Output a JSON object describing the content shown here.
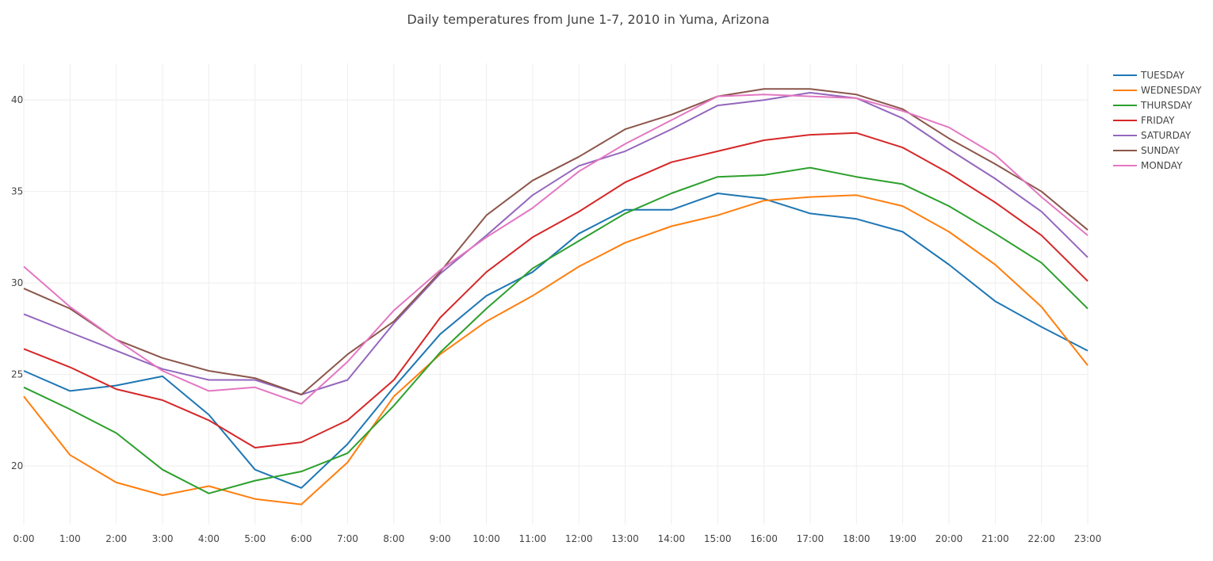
{
  "chart_data": {
    "type": "line",
    "title": "Daily temperatures from June 1-7, 2010 in Yuma, Arizona",
    "xlabel": "",
    "ylabel": "",
    "categories": [
      "0:00",
      "1:00",
      "2:00",
      "3:00",
      "4:00",
      "5:00",
      "6:00",
      "7:00",
      "8:00",
      "9:00",
      "10:00",
      "11:00",
      "12:00",
      "13:00",
      "14:00",
      "15:00",
      "16:00",
      "17:00",
      "18:00",
      "19:00",
      "20:00",
      "21:00",
      "22:00",
      "23:00"
    ],
    "ylim": [
      16.8,
      42
    ],
    "yticks": [
      20,
      25,
      30,
      35,
      40
    ],
    "grid": true,
    "legend_position": "top-right",
    "series": [
      {
        "name": "TUESDAY",
        "color": "#1f77b4",
        "values": [
          25.2,
          24.1,
          24.4,
          24.9,
          22.8,
          19.8,
          18.8,
          21.2,
          24.3,
          27.2,
          29.3,
          30.6,
          32.7,
          34.0,
          34.0,
          34.9,
          34.6,
          33.8,
          33.5,
          32.8,
          31.0,
          29.0,
          27.6,
          26.3
        ]
      },
      {
        "name": "WEDNESDAY",
        "color": "#ff7f0e",
        "values": [
          23.8,
          20.6,
          19.1,
          18.4,
          18.9,
          18.2,
          17.9,
          20.2,
          23.8,
          26.1,
          27.9,
          29.3,
          30.9,
          32.2,
          33.1,
          33.7,
          34.5,
          34.7,
          34.8,
          34.2,
          32.8,
          31.0,
          28.7,
          25.5
        ]
      },
      {
        "name": "THURSDAY",
        "color": "#2ca02c",
        "values": [
          24.3,
          23.1,
          21.8,
          19.8,
          18.5,
          19.2,
          19.7,
          20.7,
          23.3,
          26.2,
          28.6,
          30.8,
          32.3,
          33.8,
          34.9,
          35.8,
          35.9,
          36.3,
          35.8,
          35.4,
          34.2,
          32.7,
          31.1,
          28.6
        ]
      },
      {
        "name": "FRIDAY",
        "color": "#d62728",
        "values": [
          26.4,
          25.4,
          24.2,
          23.6,
          22.5,
          21.0,
          21.3,
          22.5,
          24.7,
          28.1,
          30.6,
          32.5,
          33.9,
          35.5,
          36.6,
          37.2,
          37.8,
          38.1,
          38.2,
          37.4,
          36.0,
          34.4,
          32.6,
          30.1
        ]
      },
      {
        "name": "SATURDAY",
        "color": "#9467bd",
        "values": [
          28.3,
          27.3,
          26.3,
          25.3,
          24.7,
          24.7,
          23.9,
          24.7,
          27.8,
          30.5,
          32.6,
          34.8,
          36.4,
          37.2,
          38.4,
          39.7,
          40.0,
          40.4,
          40.1,
          39.0,
          37.3,
          35.7,
          33.9,
          31.4
        ]
      },
      {
        "name": "SUNDAY",
        "color": "#8c564b",
        "values": [
          29.7,
          28.6,
          26.9,
          25.9,
          25.2,
          24.8,
          23.9,
          26.1,
          27.9,
          30.6,
          33.7,
          35.6,
          36.9,
          38.4,
          39.2,
          40.2,
          40.6,
          40.6,
          40.3,
          39.5,
          37.9,
          36.5,
          35.0,
          32.9
        ]
      },
      {
        "name": "MONDAY",
        "color": "#e377c2",
        "values": [
          30.9,
          28.7,
          26.9,
          25.2,
          24.1,
          24.3,
          23.4,
          25.7,
          28.5,
          30.7,
          32.5,
          34.1,
          36.1,
          37.6,
          38.9,
          40.2,
          40.3,
          40.2,
          40.1,
          39.4,
          38.5,
          37.0,
          34.7,
          32.6
        ]
      }
    ]
  }
}
